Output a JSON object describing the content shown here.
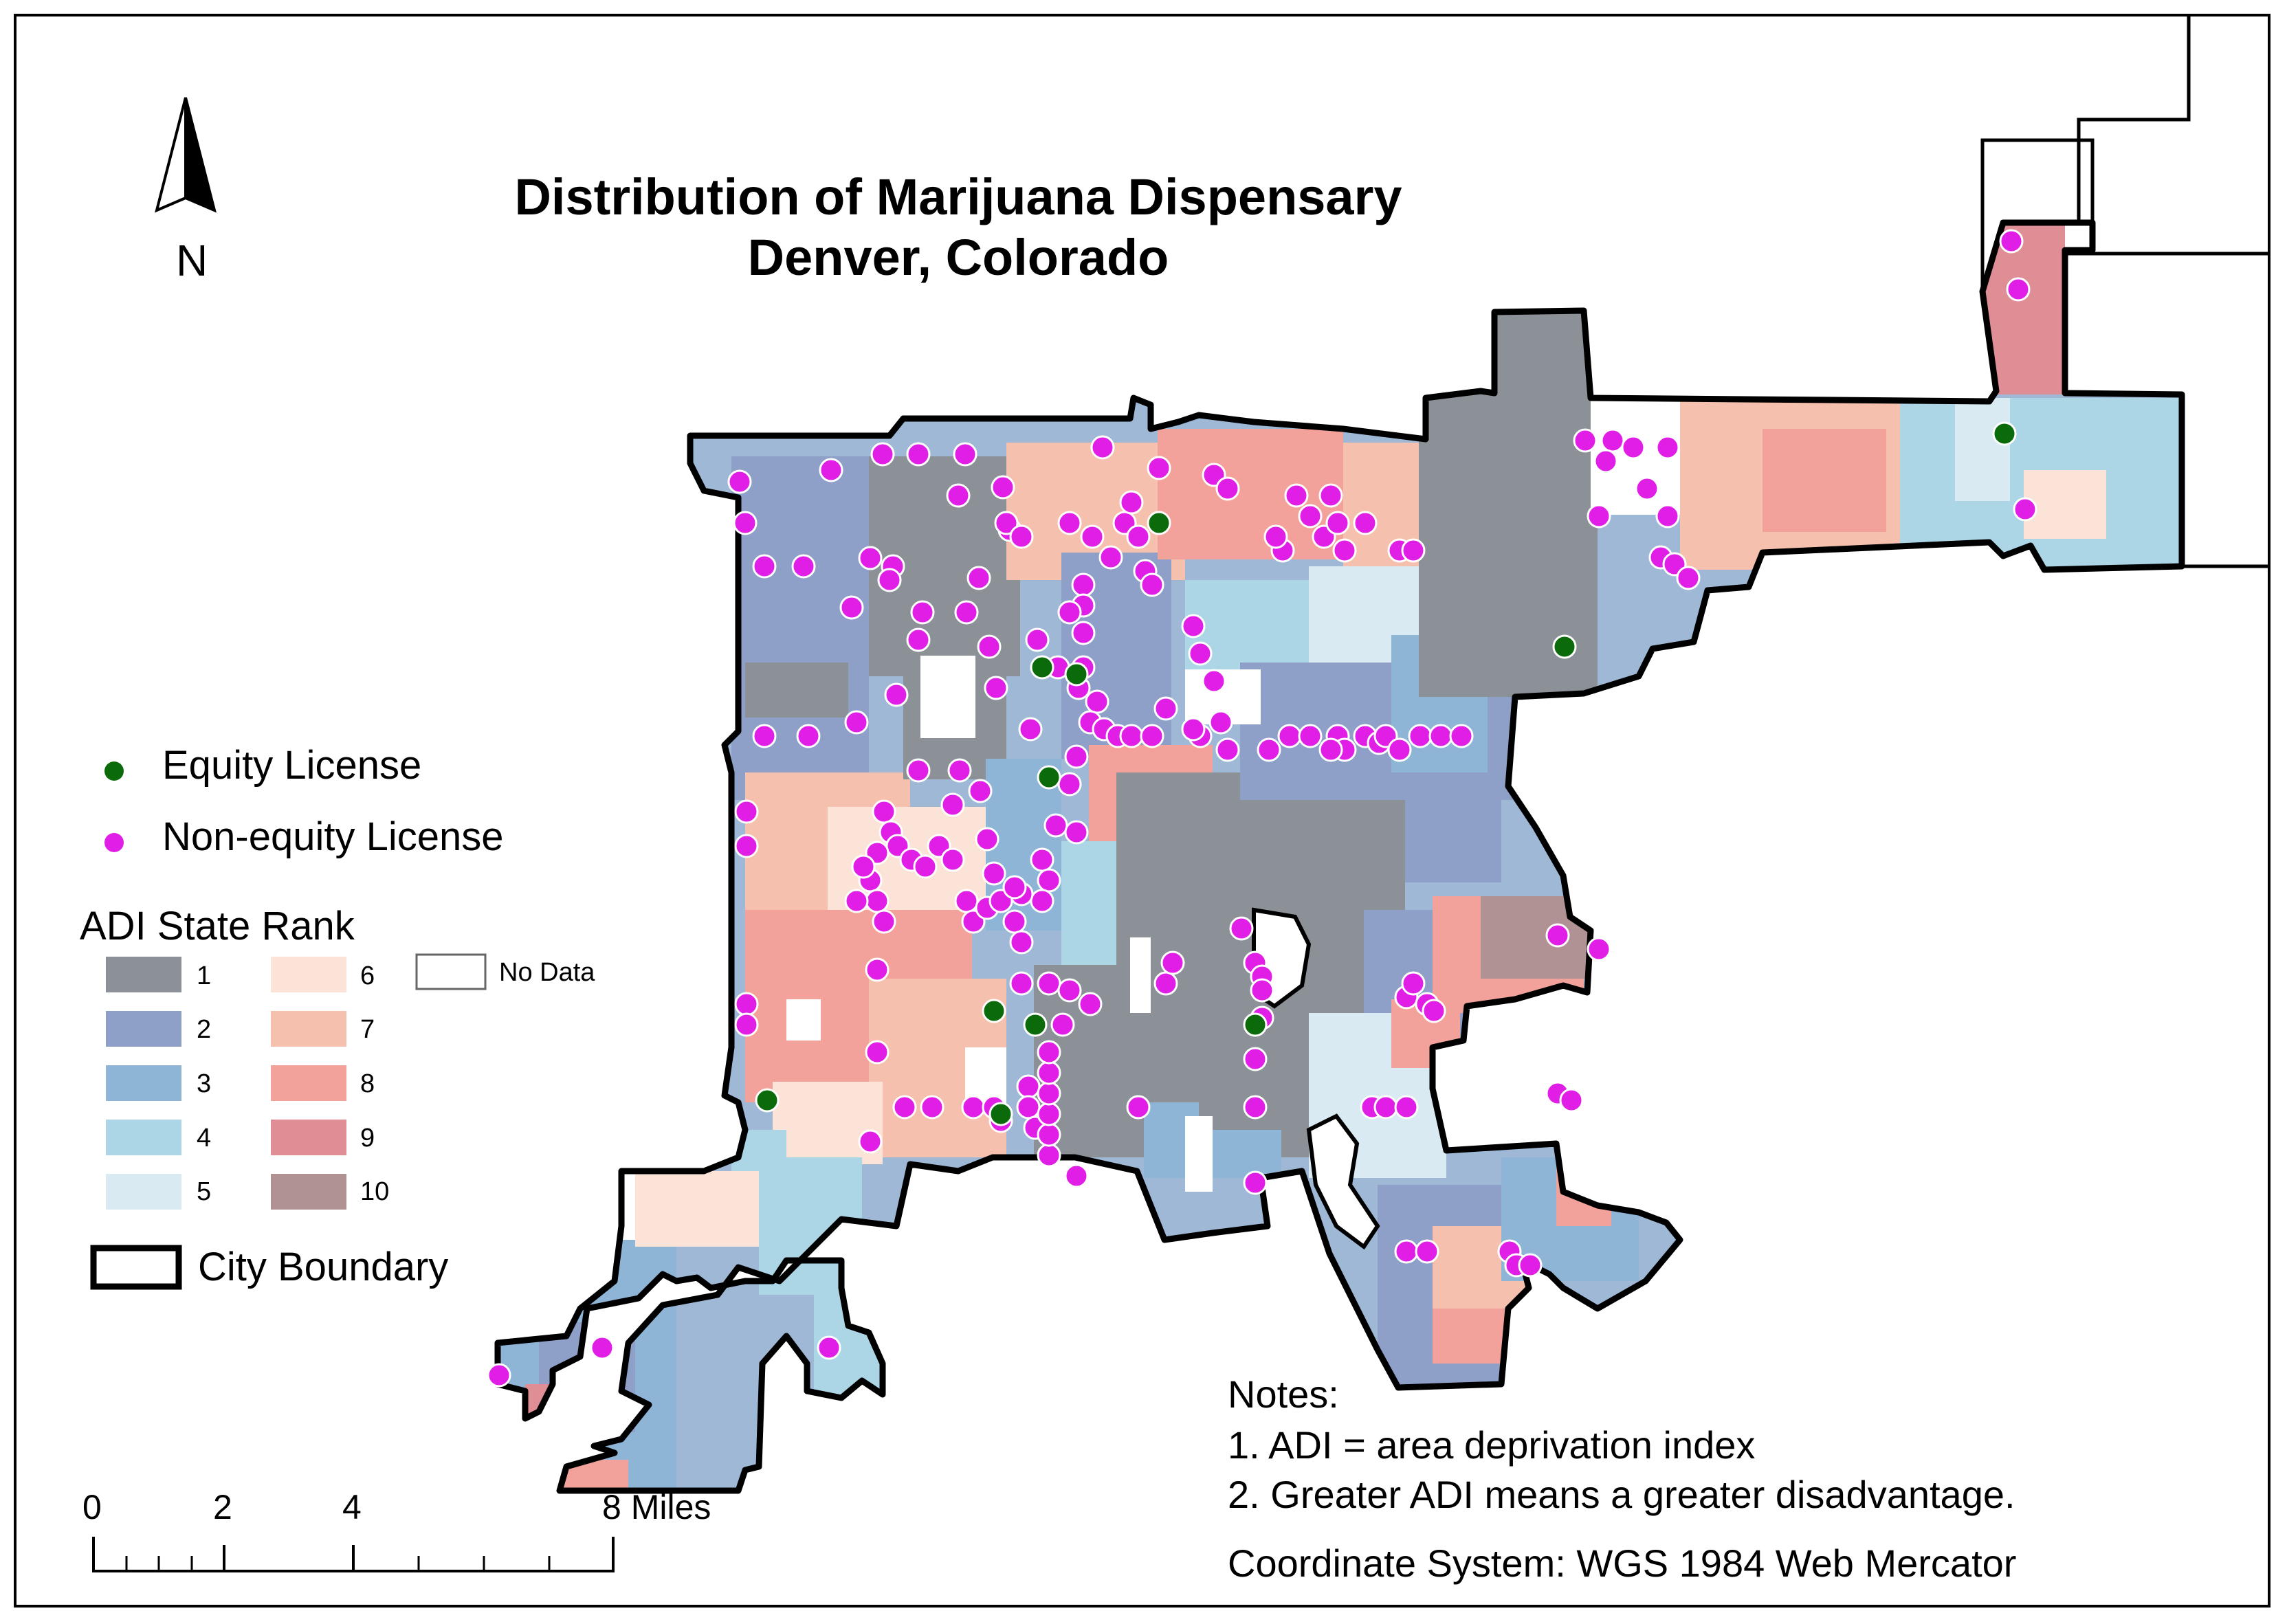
{
  "title_line1": "Distribution of Marijuana Dispensary",
  "title_line2": "Denver, Colorado",
  "north_label": "N",
  "legend": {
    "equity_label": "Equity License",
    "nonequity_label": "Non-equity License",
    "equity_color": "#0b6b0b",
    "nonequity_color": "#e01ee6",
    "adi_title": "ADI State Rank",
    "adi_classes": [
      {
        "label": "1",
        "color": "#8c9198"
      },
      {
        "label": "2",
        "color": "#8ea0c8"
      },
      {
        "label": "3",
        "color": "#8fb5d6"
      },
      {
        "label": "4",
        "color": "#acd6e6"
      },
      {
        "label": "5",
        "color": "#d9eaf3"
      },
      {
        "label": "6",
        "color": "#fbe3d7"
      },
      {
        "label": "7",
        "color": "#f6c0ae"
      },
      {
        "label": "8",
        "color": "#f2a29a"
      },
      {
        "label": "9",
        "color": "#df8e96"
      },
      {
        "label": "10",
        "color": "#b09295"
      }
    ],
    "nodata_label": "No Data",
    "boundary_label": "City Boundary"
  },
  "notes": {
    "heading": "Notes:",
    "line1": "1. ADI = area deprivation index",
    "line2": "2. Greater ADI means a greater disadvantage.",
    "coord": "Coordinate System: WGS 1984 Web Mercator"
  },
  "scale": {
    "ticks": [
      "0",
      "2",
      "4"
    ],
    "end_label": "8 Miles"
  }
}
